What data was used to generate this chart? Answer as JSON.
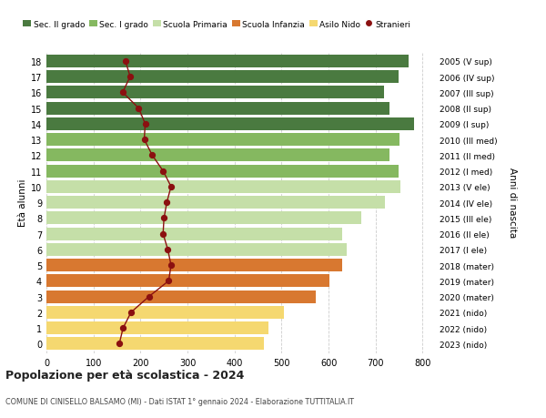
{
  "ages": [
    18,
    17,
    16,
    15,
    14,
    13,
    12,
    11,
    10,
    9,
    8,
    7,
    6,
    5,
    4,
    3,
    2,
    1,
    0
  ],
  "years": [
    "2005 (V sup)",
    "2006 (IV sup)",
    "2007 (III sup)",
    "2008 (II sup)",
    "2009 (I sup)",
    "2010 (III med)",
    "2011 (II med)",
    "2012 (I med)",
    "2013 (V ele)",
    "2014 (IV ele)",
    "2015 (III ele)",
    "2016 (II ele)",
    "2017 (I ele)",
    "2018 (mater)",
    "2019 (mater)",
    "2020 (mater)",
    "2021 (nido)",
    "2022 (nido)",
    "2023 (nido)"
  ],
  "bar_values": [
    770,
    748,
    718,
    730,
    782,
    750,
    730,
    748,
    752,
    720,
    670,
    628,
    638,
    628,
    602,
    572,
    505,
    472,
    462
  ],
  "stranieri_values": [
    168,
    178,
    162,
    196,
    210,
    208,
    225,
    248,
    265,
    256,
    250,
    248,
    258,
    265,
    260,
    218,
    180,
    163,
    155
  ],
  "bar_colors": [
    "#4a7a40",
    "#4a7a40",
    "#4a7a40",
    "#4a7a40",
    "#4a7a40",
    "#85b860",
    "#85b860",
    "#85b860",
    "#c5dfa8",
    "#c5dfa8",
    "#c5dfa8",
    "#c5dfa8",
    "#c5dfa8",
    "#d87830",
    "#d87830",
    "#d87830",
    "#f5d870",
    "#f5d870",
    "#f5d870"
  ],
  "legend_labels": [
    "Sec. II grado",
    "Sec. I grado",
    "Scuola Primaria",
    "Scuola Infanzia",
    "Asilo Nido",
    "Stranieri"
  ],
  "legend_colors": [
    "#4a7a40",
    "#85b860",
    "#c5dfa8",
    "#d87830",
    "#f5d870",
    "#8b1010"
  ],
  "stranieri_color": "#8b1010",
  "title": "Popolazione per età scolastica - 2024",
  "subtitle": "COMUNE DI CINISELLO BALSAMO (MI) - Dati ISTAT 1° gennaio 2024 - Elaborazione TUTTITALIA.IT",
  "ylabel": "Età alunni",
  "right_label": "Anni di nascita",
  "xlim": [
    0,
    830
  ],
  "xticks": [
    0,
    100,
    200,
    300,
    400,
    500,
    600,
    700,
    800
  ],
  "bg_color": "#ffffff",
  "grid_color": "#cccccc"
}
